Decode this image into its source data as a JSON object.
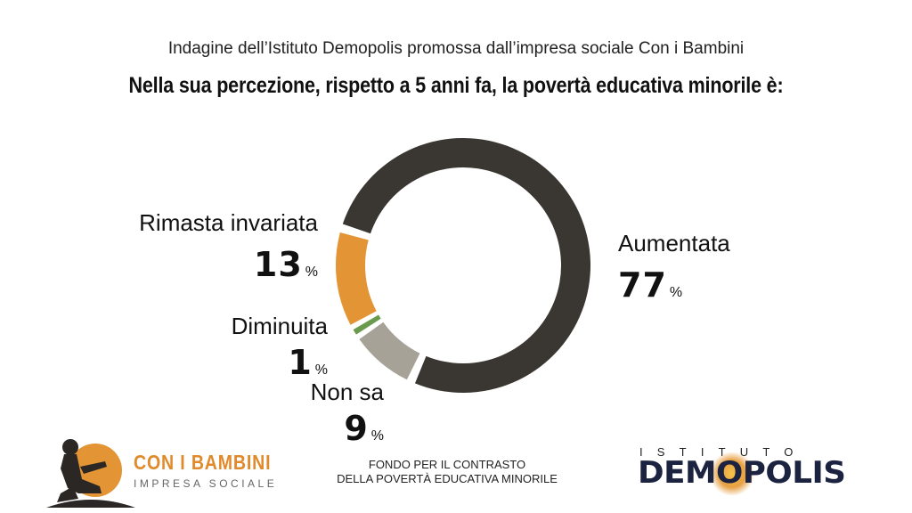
{
  "header": {
    "subtitle": "Indagine dell’Istituto Demopolis promossa dall’impresa sociale Con i Bambini",
    "title": "Nella sua percezione, rispetto a 5 anni fa, la povertà educativa minorile è:"
  },
  "chart_data": {
    "type": "pie",
    "variant": "donut",
    "title": "Nella sua percezione, rispetto a 5 anni fa, la povertà educativa minorile è:",
    "unit": "%",
    "slices": [
      {
        "label": "Aumentata",
        "value": 77,
        "color": "#3a3632"
      },
      {
        "label": "Non sa",
        "value": 9,
        "color": "#a7a297"
      },
      {
        "label": "Diminuita",
        "value": 1,
        "color": "#6a9a4e"
      },
      {
        "label": "Rimasta invariata",
        "value": 13,
        "color": "#e39435"
      }
    ]
  },
  "labels": {
    "aumentata": {
      "name": "Aumentata",
      "value": "77",
      "pct": "%"
    },
    "non_sa": {
      "name": "Non sa",
      "value": "9",
      "pct": "%"
    },
    "diminuita": {
      "name": "Diminuita",
      "value": "1",
      "pct": "%"
    },
    "invariata": {
      "name": "Rimasta invariata",
      "value": "13",
      "pct": "%"
    }
  },
  "footer": {
    "con_i_bambini": "CON I BAMBINI",
    "impresa_sociale": "IMPRESA SOCIALE",
    "fondo_line1": "FONDO PER IL CONTRASTO",
    "fondo_line2": "DELLA POVERTÀ EDUCATIVA MINORILE",
    "istituto": "ISTITUTO",
    "demopolis": "DEMOPOLIS",
    "brand_orange": "#e08a2c",
    "brand_navy": "#1c2340"
  }
}
